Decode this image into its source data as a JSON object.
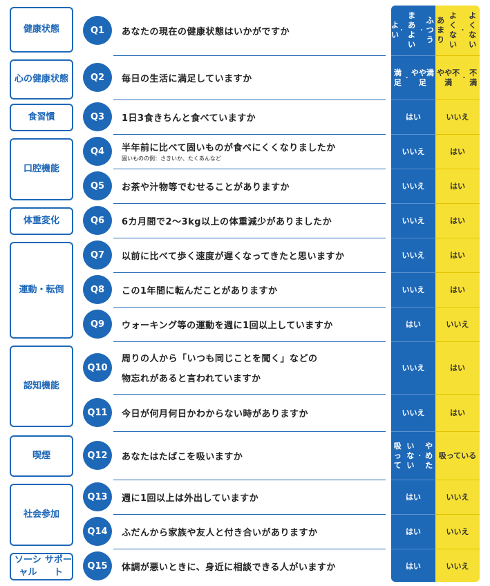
{
  "categories": [
    {
      "id": "health",
      "label": "健康状態"
    },
    {
      "id": "mental",
      "label": "心の\n健康状態"
    },
    {
      "id": "diet",
      "label": "食習慣"
    },
    {
      "id": "oral",
      "label": "口腔機能"
    },
    {
      "id": "weight",
      "label": "体重変化"
    },
    {
      "id": "exercise",
      "label": "運動・転倒"
    },
    {
      "id": "cognition",
      "label": "認知機能"
    },
    {
      "id": "smoking",
      "label": "喫煙"
    },
    {
      "id": "social",
      "label": "社会参加"
    },
    {
      "id": "support",
      "label": "ソーシャル\nサポート"
    }
  ],
  "questions": [
    {
      "num": "Q1",
      "text": "あなたの現在の健康状態はいかがですか",
      "blue": "よい\n・\nまあよい\n・\nふつう",
      "yellow": "あまり\nよくない\n・\nよくない"
    },
    {
      "num": "Q2",
      "text": "毎日の生活に満足していますか",
      "blue": "満足\n・\nやや満足",
      "yellow": "やや不満\n・\n不満"
    },
    {
      "num": "Q3",
      "text": "1日3食きちんと食べていますか",
      "blue": "はい",
      "yellow": "いいえ"
    },
    {
      "num": "Q4",
      "text": "半年前に比べて固いものが食べにくくなりましたか",
      "note": "固いものの例：さきいか、たくあんなど",
      "blue": "いいえ",
      "yellow": "はい"
    },
    {
      "num": "Q5",
      "text": "お茶や汁物等でむせることがありますか",
      "blue": "いいえ",
      "yellow": "はい"
    },
    {
      "num": "Q6",
      "text": "6カ月間で2～3kg以上の体重減少がありましたか",
      "blue": "いいえ",
      "yellow": "はい"
    },
    {
      "num": "Q7",
      "text": "以前に比べて歩く速度が遅くなってきたと思いますか",
      "blue": "いいえ",
      "yellow": "はい"
    },
    {
      "num": "Q8",
      "text": "この1年間に転んだことがありますか",
      "blue": "いいえ",
      "yellow": "はい"
    },
    {
      "num": "Q9",
      "text": "ウォーキング等の運動を週に1回以上していますか",
      "blue": "はい",
      "yellow": "いいえ"
    },
    {
      "num": "Q10",
      "text": "周りの人から「いつも同じことを聞く」などの",
      "text2": "物忘れがあると言われていますか",
      "blue": "いいえ",
      "yellow": "はい"
    },
    {
      "num": "Q11",
      "text": "今日が何月何日かわからない時がありますか",
      "blue": "いいえ",
      "yellow": "はい"
    },
    {
      "num": "Q12",
      "text": "あなたはたばこを吸いますか",
      "blue": "吸って\nいない\n・\nやめた",
      "yellow": "吸って\nいる"
    },
    {
      "num": "Q13",
      "text": "週に1回以上は外出していますか",
      "blue": "はい",
      "yellow": "いいえ"
    },
    {
      "num": "Q14",
      "text": "ふだんから家族や友人と付き合いがありますか",
      "blue": "はい",
      "yellow": "いいえ"
    },
    {
      "num": "Q15",
      "text": "体調が悪いときに、身近に相談できる人がいますか",
      "blue": "はい",
      "yellow": "いいえ"
    }
  ],
  "colors": {
    "blue": "#1e68b8",
    "yellow": "#f7e034"
  }
}
